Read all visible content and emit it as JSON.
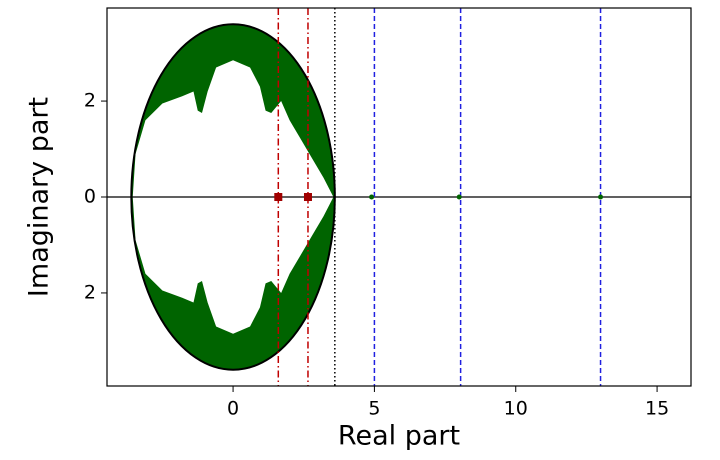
{
  "chart_data": {
    "type": "scatter",
    "x_label": "Real part",
    "y_label": "Imaginary part",
    "xlim": [
      -4.46,
      16.2
    ],
    "ylim": [
      -3.94,
      3.94
    ],
    "xticks": [
      0,
      5,
      10,
      15
    ],
    "yticks": [
      {
        "value": -2,
        "label": "2"
      },
      0,
      2
    ],
    "cluster": {
      "color": "#006400",
      "outline_color": "#000000",
      "radius": 3.6,
      "hole_x": [
        -3.55,
        -3.45,
        -3.1,
        -2.5,
        -1.8,
        -1.4,
        -1.25,
        -1.1,
        -0.9,
        -0.6,
        0,
        0.6,
        0.95,
        1.15,
        1.35,
        1.7,
        2.0,
        2.4,
        2.8,
        3.2,
        3.55,
        3.2,
        2.8,
        2.4,
        2.0,
        1.7,
        1.35,
        1.15,
        0.95,
        0.6,
        0,
        -0.6,
        -0.9,
        -1.1,
        -1.25,
        -1.4,
        -1.8,
        -2.5,
        -3.1,
        -3.45
      ],
      "hole_y": [
        0,
        0.9,
        1.6,
        1.95,
        2.1,
        2.2,
        1.8,
        1.75,
        2.2,
        2.7,
        2.85,
        2.7,
        2.3,
        1.8,
        1.75,
        2.0,
        1.6,
        1.2,
        0.8,
        0.4,
        0,
        -0.4,
        -0.8,
        -1.2,
        -1.6,
        -2.0,
        -1.75,
        -1.8,
        -2.3,
        -2.7,
        -2.85,
        -2.7,
        -2.2,
        -1.75,
        -1.8,
        -2.2,
        -2.1,
        -1.95,
        -1.6,
        -0.9
      ]
    },
    "points": {
      "color": "#006400",
      "x": [
        4.9,
        8.0,
        13.0
      ],
      "y": [
        0,
        0,
        0
      ]
    },
    "markers": {
      "color": "#a00000",
      "x": [
        1.6,
        2.65
      ],
      "y": [
        0,
        0
      ]
    },
    "hline": 0,
    "vlines": [
      {
        "x": 1.6,
        "color": "#c00000",
        "style": "dashdot"
      },
      {
        "x": 2.65,
        "color": "#c00000",
        "style": "dashdot"
      },
      {
        "x": 3.6,
        "color": "#000000",
        "style": "dotted"
      },
      {
        "x": 5.0,
        "color": "#2020e0",
        "style": "dashed"
      },
      {
        "x": 8.05,
        "color": "#2020e0",
        "style": "dashed"
      },
      {
        "x": 13.0,
        "color": "#2020e0",
        "style": "dashed"
      }
    ]
  }
}
